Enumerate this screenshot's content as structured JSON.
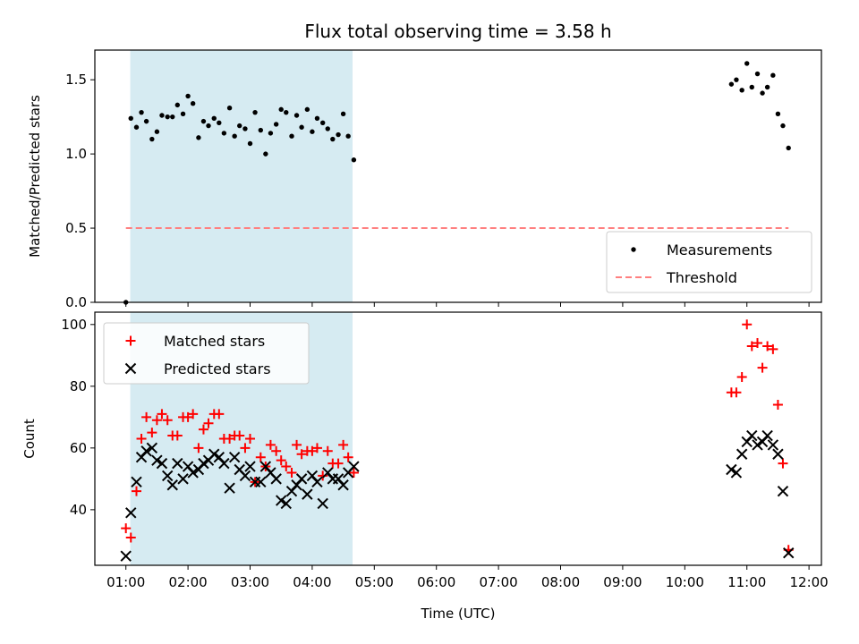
{
  "chart_data": [
    {
      "type": "scatter",
      "title": "Flux total observing time = 3.58 h",
      "xlabel": "",
      "ylabel": "Matched/Predicted stars",
      "x_unit": "hours UTC",
      "xlim": [
        0.5,
        12.2
      ],
      "ylim": [
        0.0,
        1.7
      ],
      "yticks": [
        0.0,
        0.5,
        1.0,
        1.5
      ],
      "ytick_labels": [
        "0.0",
        "0.5",
        "1.0",
        "1.5"
      ],
      "shaded_interval": [
        1.07,
        4.65
      ],
      "shade_color": "#add8e6",
      "legend": {
        "placement": "lower-right",
        "entries": [
          "Measurements",
          "Threshold"
        ]
      },
      "series": [
        {
          "name": "Measurements",
          "marker": "dot",
          "color": "#000000",
          "x": [
            1.0,
            1.08,
            1.17,
            1.25,
            1.33,
            1.42,
            1.5,
            1.58,
            1.67,
            1.75,
            1.83,
            1.92,
            2.0,
            2.08,
            2.17,
            2.25,
            2.33,
            2.42,
            2.5,
            2.58,
            2.67,
            2.75,
            2.83,
            2.92,
            3.0,
            3.08,
            3.17,
            3.25,
            3.33,
            3.42,
            3.5,
            3.58,
            3.67,
            3.75,
            3.83,
            3.92,
            4.0,
            4.08,
            4.17,
            4.25,
            4.33,
            4.42,
            4.5,
            4.58,
            4.67,
            10.75,
            10.83,
            10.92,
            11.0,
            11.08,
            11.17,
            11.25,
            11.33,
            11.42,
            11.5,
            11.58,
            11.67
          ],
          "y": [
            0.0,
            1.24,
            1.18,
            1.28,
            1.22,
            1.1,
            1.15,
            1.26,
            1.25,
            1.25,
            1.33,
            1.27,
            1.39,
            1.34,
            1.11,
            1.22,
            1.19,
            1.24,
            1.21,
            1.14,
            1.31,
            1.12,
            1.19,
            1.17,
            1.07,
            1.28,
            1.16,
            1.0,
            1.14,
            1.2,
            1.3,
            1.28,
            1.12,
            1.26,
            1.18,
            1.3,
            1.15,
            1.24,
            1.21,
            1.17,
            1.1,
            1.13,
            1.27,
            1.12,
            0.96,
            1.47,
            1.5,
            1.43,
            1.61,
            1.45,
            1.54,
            1.41,
            1.45,
            1.53,
            1.27,
            1.19,
            1.04
          ]
        },
        {
          "name": "Threshold",
          "style": "dashed",
          "color": "#ff7f7f",
          "x": [
            1.0,
            11.67
          ],
          "y": [
            0.5,
            0.5
          ]
        }
      ]
    },
    {
      "type": "scatter",
      "title": "",
      "xlabel": "Time (UTC)",
      "ylabel": "Count",
      "x_unit": "hours UTC",
      "xlim": [
        0.5,
        12.2
      ],
      "ylim": [
        22,
        104
      ],
      "yticks": [
        40,
        60,
        80,
        100
      ],
      "ytick_labels": [
        "40",
        "60",
        "80",
        "100"
      ],
      "xticks": [
        1,
        2,
        3,
        4,
        5,
        6,
        7,
        8,
        9,
        10,
        11,
        12
      ],
      "xtick_labels": [
        "01:00",
        "02:00",
        "03:00",
        "04:00",
        "05:00",
        "06:00",
        "07:00",
        "08:00",
        "09:00",
        "10:00",
        "11:00",
        "12:00"
      ],
      "shaded_interval": [
        1.07,
        4.65
      ],
      "shade_color": "#add8e6",
      "legend": {
        "placement": "upper-left",
        "entries": [
          "Matched stars",
          "Predicted stars"
        ]
      },
      "series": [
        {
          "name": "Matched stars",
          "marker": "plus",
          "color": "#ff0000",
          "x": [
            1.0,
            1.08,
            1.17,
            1.25,
            1.33,
            1.42,
            1.5,
            1.58,
            1.67,
            1.75,
            1.83,
            1.92,
            2.0,
            2.08,
            2.17,
            2.25,
            2.33,
            2.42,
            2.5,
            2.58,
            2.67,
            2.75,
            2.83,
            2.92,
            3.0,
            3.08,
            3.17,
            3.25,
            3.33,
            3.42,
            3.5,
            3.58,
            3.67,
            3.75,
            3.83,
            3.92,
            4.0,
            4.08,
            4.17,
            4.25,
            4.33,
            4.42,
            4.5,
            4.58,
            4.67,
            10.75,
            10.83,
            10.92,
            11.0,
            11.08,
            11.17,
            11.25,
            11.33,
            11.42,
            11.5,
            11.58,
            11.67
          ],
          "y": [
            34,
            31,
            46,
            63,
            70,
            65,
            69,
            71,
            69,
            64,
            64,
            70,
            70,
            71,
            60,
            66,
            68,
            71,
            71,
            63,
            63,
            64,
            64,
            60,
            63,
            49,
            57,
            54,
            61,
            59,
            56,
            54,
            52,
            61,
            58,
            59,
            59,
            60,
            51,
            59,
            55,
            55,
            61,
            57,
            52,
            78,
            78,
            83,
            100,
            93,
            94,
            86,
            93,
            92,
            74,
            55,
            27
          ]
        },
        {
          "name": "Predicted stars",
          "marker": "x",
          "color": "#000000",
          "x": [
            1.0,
            1.08,
            1.17,
            1.25,
            1.33,
            1.42,
            1.5,
            1.58,
            1.67,
            1.75,
            1.83,
            1.92,
            2.0,
            2.08,
            2.17,
            2.25,
            2.33,
            2.42,
            2.5,
            2.58,
            2.67,
            2.75,
            2.83,
            2.92,
            3.0,
            3.08,
            3.17,
            3.25,
            3.33,
            3.42,
            3.5,
            3.58,
            3.67,
            3.75,
            3.83,
            3.92,
            4.0,
            4.08,
            4.17,
            4.25,
            4.33,
            4.42,
            4.5,
            4.58,
            4.67,
            10.75,
            10.83,
            10.92,
            11.0,
            11.08,
            11.17,
            11.25,
            11.33,
            11.42,
            11.5,
            11.58,
            11.67
          ],
          "y": [
            25,
            39,
            49,
            57,
            59,
            60,
            56,
            55,
            51,
            48,
            55,
            50,
            54,
            52,
            53,
            55,
            56,
            58,
            57,
            55,
            47,
            57,
            53,
            51,
            54,
            49,
            49,
            54,
            52,
            50,
            43,
            42,
            46,
            48,
            50,
            45,
            51,
            49,
            42,
            52,
            50,
            50,
            48,
            52,
            54,
            53,
            52,
            58,
            62,
            64,
            61,
            62,
            64,
            61,
            58,
            46,
            26
          ]
        }
      ]
    }
  ]
}
